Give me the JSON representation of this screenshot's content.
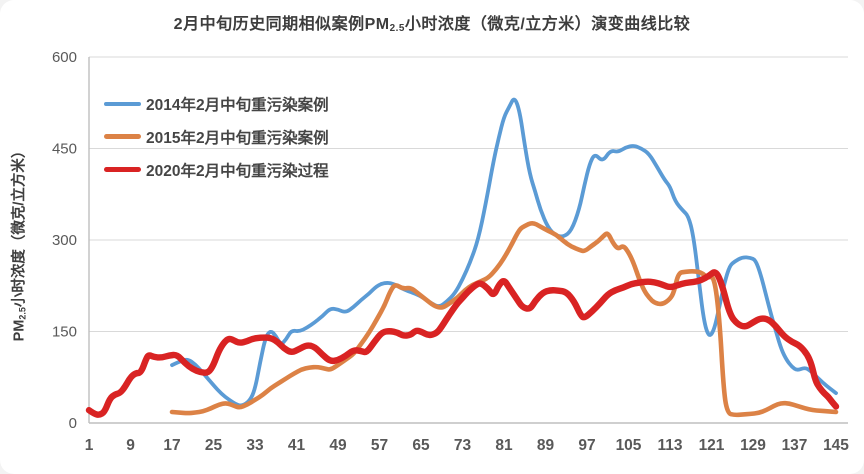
{
  "title": {
    "prefix": "2月中旬历史同期相似案例PM",
    "subscript": "2.5",
    "suffix": "小时浓度（微克/立方米）演变曲线比较"
  },
  "y_axis": {
    "title_prefix": "PM",
    "title_subscript": "2.5",
    "title_suffix": "小时浓度（微克/立方米）",
    "ticks": [
      "0",
      "150",
      "300",
      "450",
      "600"
    ]
  },
  "x_axis": {
    "ticks": [
      "1",
      "9",
      "17",
      "25",
      "33",
      "41",
      "49",
      "57",
      "65",
      "73",
      "81",
      "89",
      "97",
      "105",
      "113",
      "121",
      "129",
      "137",
      "145"
    ]
  },
  "colors": {
    "grid": "#d9d9d9",
    "axis": "#bfbfbf",
    "tick_text": "#595959",
    "title_text": "#3d3d3d"
  },
  "chart_data": {
    "type": "line",
    "xlabel": "",
    "ylabel": "PM2.5小时浓度（微克/立方米）",
    "xlim": [
      1,
      145
    ],
    "ylim": [
      0,
      600
    ],
    "x_tick_step": 8,
    "grid": true,
    "legend_position": "top-left",
    "series": [
      {
        "name": "2014年2月中旬重污染案例",
        "color": "#5B9BD5",
        "stroke_width": 3.8,
        "points": [
          [
            17,
            95
          ],
          [
            18.5,
            101
          ],
          [
            20,
            105
          ],
          [
            21.5,
            96
          ],
          [
            23,
            82
          ],
          [
            25,
            62
          ],
          [
            26.5,
            48
          ],
          [
            28,
            38
          ],
          [
            29.5,
            30
          ],
          [
            30.5,
            28
          ],
          [
            32,
            36
          ],
          [
            33,
            55
          ],
          [
            34,
            100
          ],
          [
            35,
            140
          ],
          [
            36,
            152
          ],
          [
            37,
            143
          ],
          [
            38,
            128
          ],
          [
            39,
            137
          ],
          [
            40,
            152
          ],
          [
            41.5,
            150
          ],
          [
            43,
            156
          ],
          [
            44.5,
            165
          ],
          [
            46,
            175
          ],
          [
            47.5,
            188
          ],
          [
            49,
            186
          ],
          [
            50.5,
            181
          ],
          [
            52,
            190
          ],
          [
            53.5,
            202
          ],
          [
            55,
            212
          ],
          [
            56.5,
            225
          ],
          [
            58,
            230
          ],
          [
            59.5,
            229
          ],
          [
            61,
            222
          ],
          [
            62.5,
            216
          ],
          [
            64,
            212
          ],
          [
            65.5,
            205
          ],
          [
            67,
            196
          ],
          [
            68.5,
            190
          ],
          [
            70,
            199
          ],
          [
            71.5,
            212
          ],
          [
            73,
            235
          ],
          [
            74.5,
            264
          ],
          [
            76,
            300
          ],
          [
            77.5,
            360
          ],
          [
            79,
            430
          ],
          [
            80,
            468
          ],
          [
            81,
            502
          ],
          [
            82,
            518
          ],
          [
            83,
            535
          ],
          [
            84,
            512
          ],
          [
            85,
            455
          ],
          [
            86,
            407
          ],
          [
            87,
            380
          ],
          [
            88,
            350
          ],
          [
            89.5,
            320
          ],
          [
            91,
            307
          ],
          [
            92.5,
            305
          ],
          [
            94,
            315
          ],
          [
            95.5,
            350
          ],
          [
            96.5,
            390
          ],
          [
            97.5,
            425
          ],
          [
            98.5,
            442
          ],
          [
            100,
            428
          ],
          [
            101.5,
            447
          ],
          [
            103,
            444
          ],
          [
            104.5,
            452
          ],
          [
            106,
            455
          ],
          [
            107.5,
            450
          ],
          [
            109,
            441
          ],
          [
            110.5,
            420
          ],
          [
            112,
            398
          ],
          [
            113,
            388
          ],
          [
            114,
            363
          ],
          [
            115.5,
            348
          ],
          [
            116.5,
            340
          ],
          [
            117.5,
            308
          ],
          [
            118.5,
            240
          ],
          [
            119.5,
            168
          ],
          [
            120.5,
            140
          ],
          [
            121.5,
            152
          ],
          [
            122.5,
            190
          ],
          [
            123.5,
            230
          ],
          [
            124.5,
            258
          ],
          [
            125.5,
            265
          ],
          [
            127,
            272
          ],
          [
            128.5,
            271
          ],
          [
            129.5,
            267
          ],
          [
            130.5,
            243
          ],
          [
            131.5,
            210
          ],
          [
            132.5,
            177
          ],
          [
            133.5,
            148
          ],
          [
            134.5,
            120
          ],
          [
            135.5,
            103
          ],
          [
            136.5,
            92
          ],
          [
            137.5,
            86
          ],
          [
            139,
            91
          ],
          [
            140,
            86
          ],
          [
            141.5,
            74
          ],
          [
            143,
            62
          ],
          [
            145,
            49
          ]
        ]
      },
      {
        "name": "2015年2月中旬重污染案例",
        "color": "#DC8246",
        "stroke_width": 4.6,
        "points": [
          [
            17,
            18
          ],
          [
            18.5,
            17
          ],
          [
            20,
            16
          ],
          [
            21.5,
            17
          ],
          [
            23,
            19
          ],
          [
            24.5,
            24
          ],
          [
            26,
            30
          ],
          [
            27.5,
            33
          ],
          [
            29,
            28
          ],
          [
            30,
            25
          ],
          [
            31.5,
            30
          ],
          [
            33,
            38
          ],
          [
            34.5,
            46
          ],
          [
            36,
            57
          ],
          [
            37.5,
            65
          ],
          [
            39,
            73
          ],
          [
            40.5,
            81
          ],
          [
            42,
            88
          ],
          [
            43.5,
            91
          ],
          [
            45,
            92
          ],
          [
            46.5,
            89
          ],
          [
            47.5,
            87
          ],
          [
            49,
            95
          ],
          [
            50.5,
            104
          ],
          [
            52,
            113
          ],
          [
            53.5,
            130
          ],
          [
            55,
            148
          ],
          [
            56.5,
            170
          ],
          [
            58,
            193
          ],
          [
            59,
            215
          ],
          [
            60,
            228
          ],
          [
            61.5,
            220
          ],
          [
            63,
            222
          ],
          [
            64.5,
            212
          ],
          [
            66,
            202
          ],
          [
            67.5,
            192
          ],
          [
            69,
            188
          ],
          [
            70.5,
            196
          ],
          [
            72,
            205
          ],
          [
            73.5,
            218
          ],
          [
            75,
            227
          ],
          [
            76.5,
            232
          ],
          [
            78,
            238
          ],
          [
            79.5,
            252
          ],
          [
            81,
            270
          ],
          [
            82.5,
            293
          ],
          [
            84,
            318
          ],
          [
            85,
            323
          ],
          [
            86.5,
            329
          ],
          [
            88,
            322
          ],
          [
            89.5,
            315
          ],
          [
            91,
            309
          ],
          [
            92.5,
            298
          ],
          [
            94,
            289
          ],
          [
            95.5,
            284
          ],
          [
            96.5,
            281
          ],
          [
            98,
            291
          ],
          [
            99,
            297
          ],
          [
            100,
            305
          ],
          [
            101,
            313
          ],
          [
            102,
            295
          ],
          [
            103,
            285
          ],
          [
            104,
            291
          ],
          [
            105,
            280
          ],
          [
            106,
            262
          ],
          [
            107,
            237
          ],
          [
            108,
            217
          ],
          [
            109,
            205
          ],
          [
            110,
            197
          ],
          [
            111.5,
            194
          ],
          [
            113,
            203
          ],
          [
            113.8,
            215
          ],
          [
            114.6,
            246
          ],
          [
            116,
            248
          ],
          [
            117.5,
            249
          ],
          [
            119,
            247
          ],
          [
            120.3,
            238
          ],
          [
            121.5,
            241
          ],
          [
            122.5,
            175
          ],
          [
            123.3,
            60
          ],
          [
            124,
            16
          ],
          [
            125.5,
            13
          ],
          [
            127,
            14
          ],
          [
            128.5,
            15
          ],
          [
            130,
            16
          ],
          [
            131.5,
            21
          ],
          [
            133,
            28
          ],
          [
            134.5,
            33
          ],
          [
            136,
            32
          ],
          [
            137.5,
            28
          ],
          [
            139,
            24
          ],
          [
            140.5,
            21
          ],
          [
            142,
            20
          ],
          [
            143.5,
            19
          ],
          [
            145,
            18
          ]
        ]
      },
      {
        "name": "2020年2月中旬重污染过程",
        "color": "#D92323",
        "stroke_width": 6.4,
        "points": [
          [
            1,
            21
          ],
          [
            2,
            15
          ],
          [
            3,
            13
          ],
          [
            4,
            18
          ],
          [
            5,
            40
          ],
          [
            6,
            47
          ],
          [
            7,
            49
          ],
          [
            8,
            60
          ],
          [
            9,
            75
          ],
          [
            10,
            82
          ],
          [
            11,
            82
          ],
          [
            12,
            105
          ],
          [
            12.5,
            112
          ],
          [
            13.5,
            108
          ],
          [
            15,
            107
          ],
          [
            16.5,
            111
          ],
          [
            18,
            112
          ],
          [
            19.5,
            98
          ],
          [
            21,
            88
          ],
          [
            22.5,
            83
          ],
          [
            24,
            82
          ],
          [
            25,
            95
          ],
          [
            26,
            118
          ],
          [
            27,
            132
          ],
          [
            28,
            139
          ],
          [
            29,
            135
          ],
          [
            30,
            131
          ],
          [
            31.5,
            134
          ],
          [
            32.5,
            138
          ],
          [
            34,
            140
          ],
          [
            36,
            140
          ],
          [
            37.5,
            132
          ],
          [
            38.5,
            123
          ],
          [
            40,
            115
          ],
          [
            41.5,
            121
          ],
          [
            43,
            128
          ],
          [
            44.5,
            125
          ],
          [
            46,
            112
          ],
          [
            47.5,
            101
          ],
          [
            49,
            103
          ],
          [
            50.5,
            110
          ],
          [
            52,
            120
          ],
          [
            53.5,
            118
          ],
          [
            54.5,
            115
          ],
          [
            56,
            133
          ],
          [
            57.5,
            149
          ],
          [
            59,
            151
          ],
          [
            60.5,
            148
          ],
          [
            61.5,
            143
          ],
          [
            63,
            144
          ],
          [
            64,
            152
          ],
          [
            65,
            150
          ],
          [
            66.5,
            143
          ],
          [
            68,
            147
          ],
          [
            69,
            158
          ],
          [
            70.5,
            178
          ],
          [
            72,
            196
          ],
          [
            73,
            205
          ],
          [
            74,
            215
          ],
          [
            75.5,
            226
          ],
          [
            76.5,
            230
          ],
          [
            78,
            220
          ],
          [
            79,
            208
          ],
          [
            80,
            226
          ],
          [
            81,
            235
          ],
          [
            82,
            222
          ],
          [
            83.5,
            203
          ],
          [
            84.5,
            190
          ],
          [
            86,
            186
          ],
          [
            87,
            200
          ],
          [
            88.5,
            214
          ],
          [
            90,
            218
          ],
          [
            91.5,
            217
          ],
          [
            93,
            215
          ],
          [
            94.5,
            200
          ],
          [
            95.8,
            176
          ],
          [
            96.5,
            172
          ],
          [
            98,
            183
          ],
          [
            99.5,
            196
          ],
          [
            101,
            211
          ],
          [
            102.5,
            218
          ],
          [
            104,
            222
          ],
          [
            105.5,
            228
          ],
          [
            107,
            230
          ],
          [
            108.5,
            232
          ],
          [
            110,
            231
          ],
          [
            111.5,
            227
          ],
          [
            113,
            222
          ],
          [
            114.5,
            226
          ],
          [
            116,
            230
          ],
          [
            117.5,
            231
          ],
          [
            119,
            234
          ],
          [
            120.5,
            241
          ],
          [
            121.8,
            250
          ],
          [
            123,
            228
          ],
          [
            124.5,
            178
          ],
          [
            126,
            162
          ],
          [
            127.5,
            157
          ],
          [
            129,
            165
          ],
          [
            130.5,
            172
          ],
          [
            132,
            170
          ],
          [
            133.5,
            158
          ],
          [
            135,
            142
          ],
          [
            136.5,
            133
          ],
          [
            138,
            127
          ],
          [
            139.5,
            112
          ],
          [
            140.3,
            96
          ],
          [
            141,
            70
          ],
          [
            141.8,
            58
          ],
          [
            142.8,
            48
          ],
          [
            143.5,
            43
          ],
          [
            144.2,
            35
          ],
          [
            145,
            27
          ]
        ]
      }
    ]
  }
}
